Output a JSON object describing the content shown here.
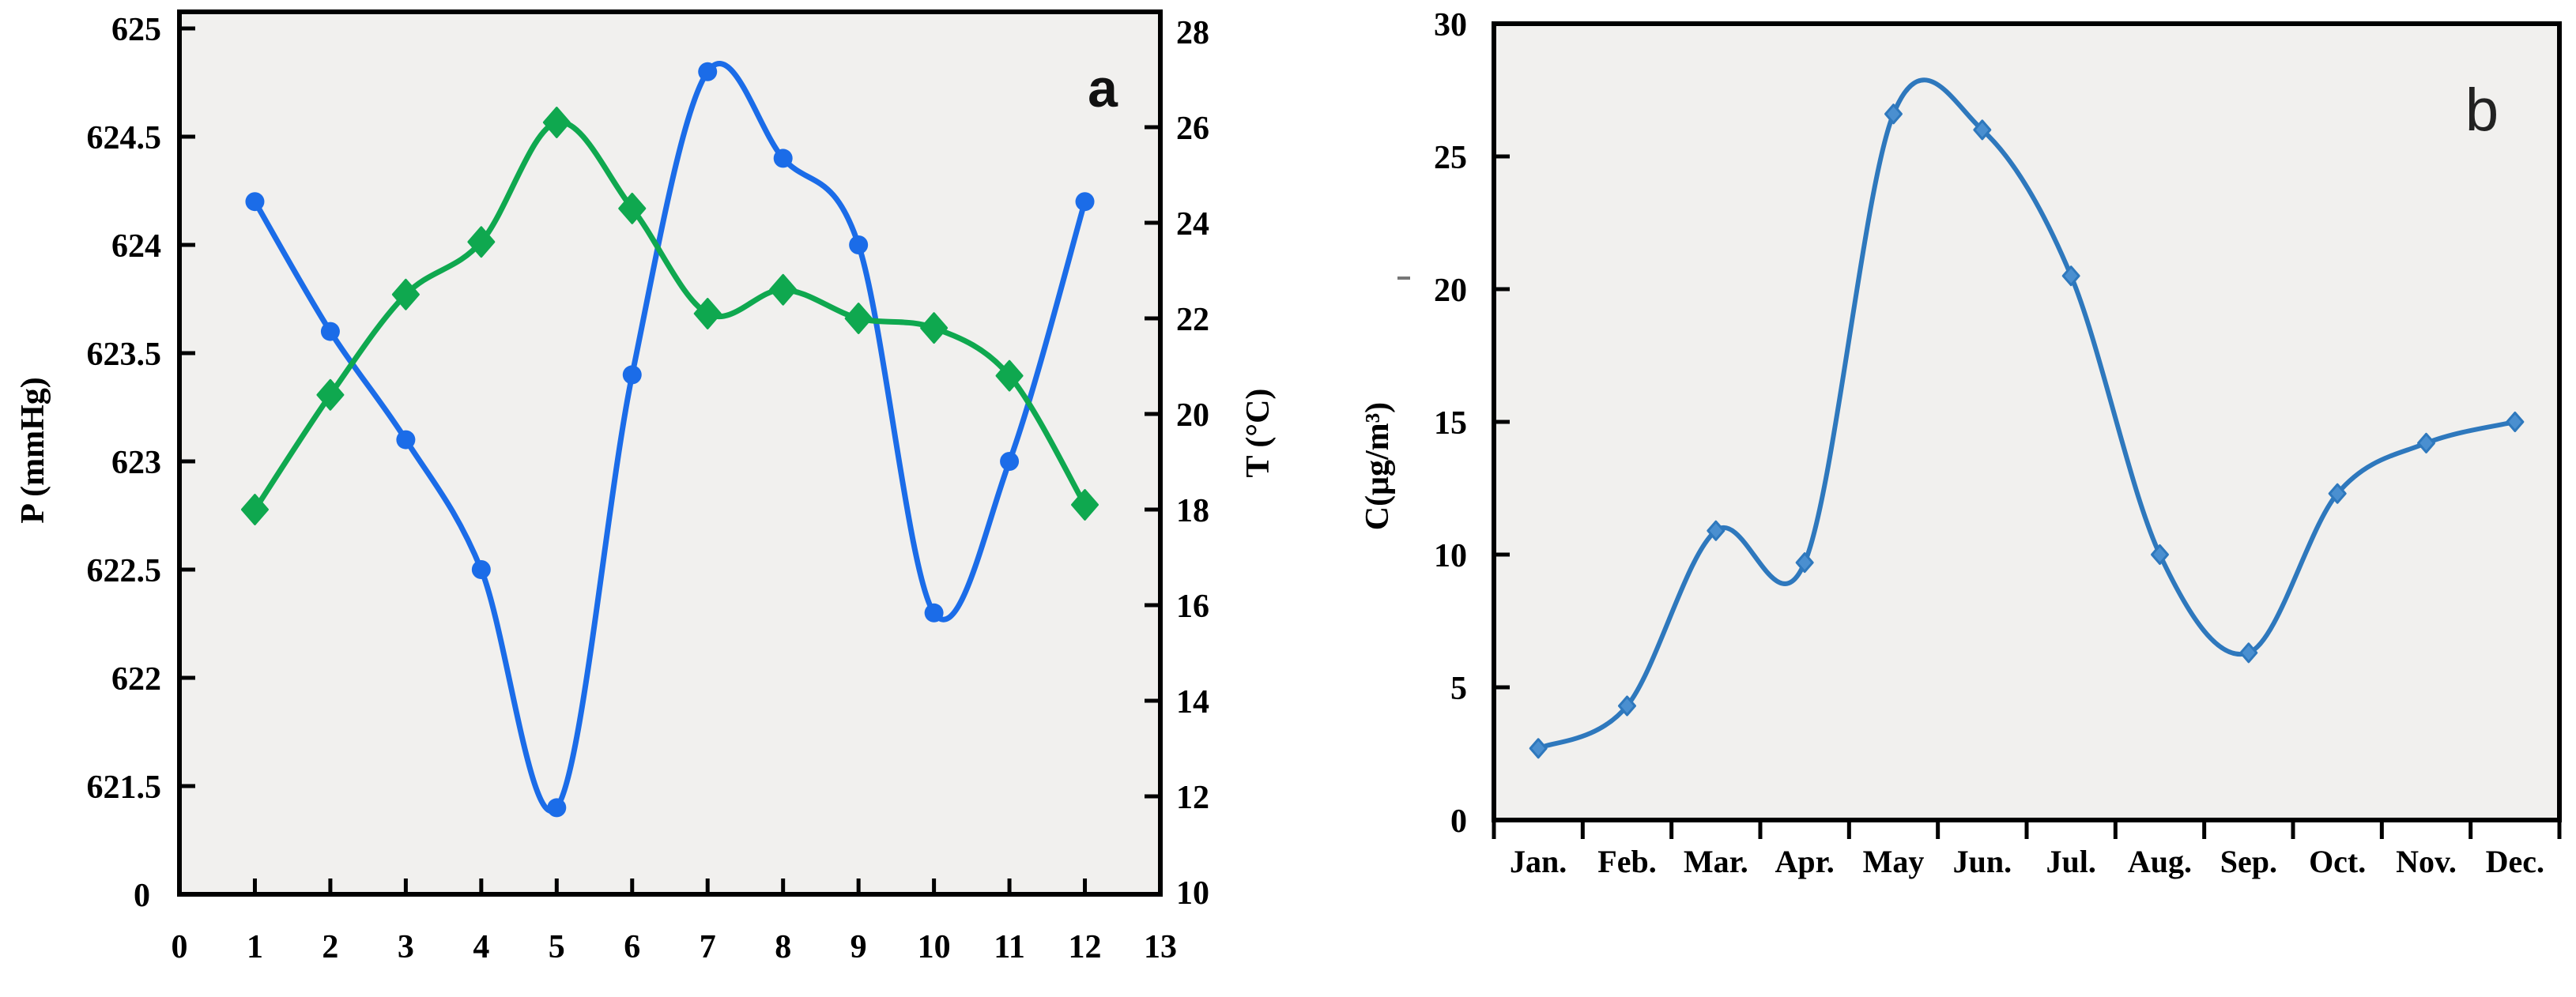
{
  "figure": {
    "background": "#ffffff",
    "plot_background": "#f1f0ee",
    "frame_color": "#000000"
  },
  "chart_data": [
    {
      "id": "a",
      "type": "line",
      "panel_label": "a",
      "x_values": [
        1,
        2,
        3,
        4,
        5,
        6,
        7,
        8,
        9,
        10,
        11,
        12
      ],
      "x_axis": {
        "ticks": [
          "0",
          "1",
          "2",
          "3",
          "4",
          "5",
          "6",
          "7",
          "8",
          "9",
          "10",
          "11",
          "12",
          "13"
        ],
        "range": [
          0,
          13
        ],
        "grid": false
      },
      "left_axis": {
        "label": "P (mmHg)",
        "ticks": [
          "625",
          "624.5",
          "624",
          "623.5",
          "623",
          "622.5",
          "622",
          "621.5"
        ],
        "break_label": "0",
        "shown_range": [
          621.5,
          625
        ]
      },
      "right_axis": {
        "label": "T (°C)",
        "ticks": [
          "28",
          "26",
          "24",
          "22",
          "20",
          "18",
          "16",
          "14",
          "12",
          "10"
        ],
        "range": [
          10,
          28
        ]
      },
      "series": [
        {
          "name": "P (mmHg)",
          "axis": "left",
          "color": "#1b6ce8",
          "marker": "circle",
          "values": [
            624.2,
            623.6,
            623.1,
            622.5,
            621.4,
            623.4,
            624.8,
            624.4,
            624.0,
            622.3,
            623.0,
            624.2
          ]
        },
        {
          "name": "T (°C)",
          "axis": "right",
          "color": "#0fa84f",
          "marker": "diamond",
          "values": [
            18.0,
            20.4,
            22.5,
            23.6,
            26.1,
            24.3,
            22.1,
            22.6,
            22.0,
            21.8,
            20.8,
            18.1
          ]
        }
      ]
    },
    {
      "id": "b",
      "type": "line",
      "panel_label": "b",
      "categories": [
        "Jan.",
        "Feb.",
        "Mar.",
        "Apr.",
        "May",
        "Jun.",
        "Jul.",
        "Aug.",
        "Sep.",
        "Oct.",
        "Nov.",
        "Dec."
      ],
      "y_axis": {
        "label": "C(μg/m³)",
        "ticks": [
          "0",
          "5",
          "10",
          "15",
          "20",
          "25",
          "30"
        ],
        "range": [
          0,
          30
        ],
        "grid": false
      },
      "series": [
        {
          "name": "C(μg/m³)",
          "color": "#2e78bd",
          "marker": "diamond",
          "marker_fill": "#4a8fd0",
          "values": [
            2.7,
            4.3,
            10.9,
            9.7,
            26.6,
            26.0,
            20.5,
            10.0,
            6.3,
            12.3,
            14.2,
            15.0
          ]
        }
      ]
    }
  ]
}
